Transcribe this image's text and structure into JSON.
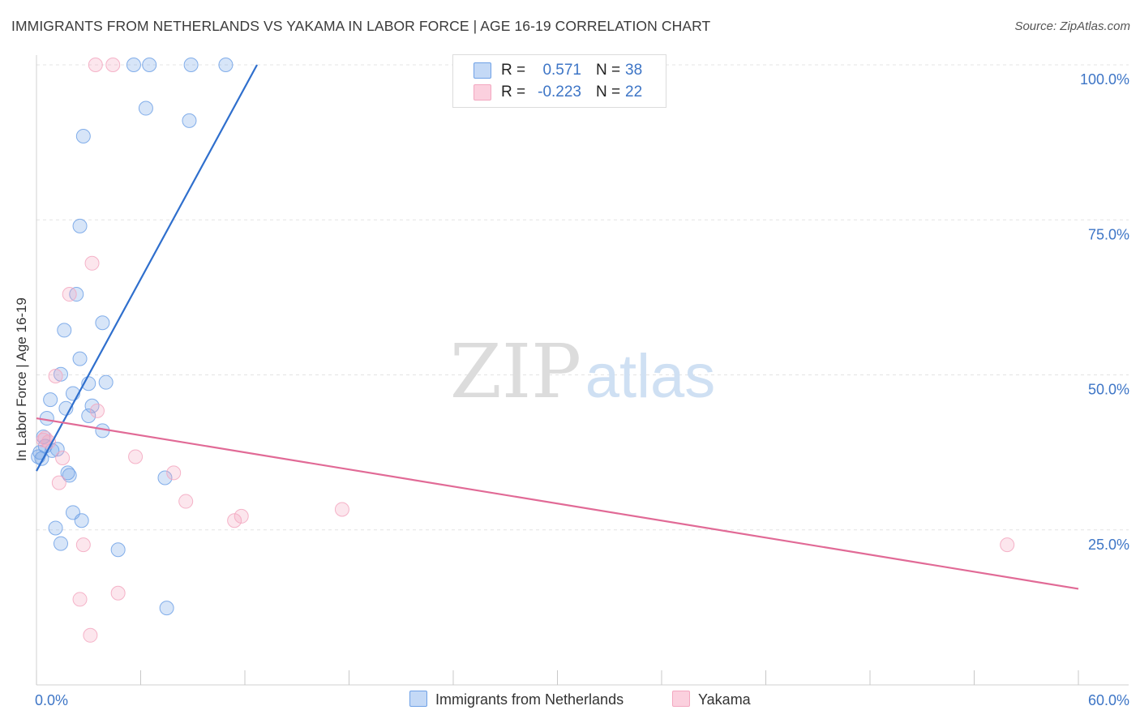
{
  "header": {
    "title": "IMMIGRANTS FROM NETHERLANDS VS YAKAMA IN LABOR FORCE | AGE 16-19 CORRELATION CHART",
    "source": "Source: ZipAtlas.com"
  },
  "watermark": {
    "zip": "ZIP",
    "atlas": "atlas"
  },
  "legend": [
    {
      "r_label": "R =",
      "r_value": "0.571",
      "n_label": "N =",
      "n_value": "38"
    },
    {
      "r_label": "R =",
      "r_value": "-0.223",
      "n_label": "N =",
      "n_value": "22"
    }
  ],
  "chart_data": {
    "type": "scatter",
    "title": "IMMIGRANTS FROM NETHERLANDS VS YAKAMA IN LABOR FORCE | AGE 16-19 CORRELATION CHART",
    "xlabel": "",
    "ylabel": "In Labor Force | Age 16-19",
    "xlim": [
      0,
      60
    ],
    "ylim": [
      0,
      100
    ],
    "x_tick_labels": [
      "0.0%",
      "60.0%"
    ],
    "y_tick_labels": [
      "25.0%",
      "50.0%",
      "75.0%",
      "100.0%"
    ],
    "y_ticks": [
      25,
      50,
      75,
      100
    ],
    "grid": true,
    "legend_position": "top-center",
    "series": [
      {
        "name": "Immigrants from Netherlands",
        "color": "#6fa1e6",
        "line_color": "#2f6fcd",
        "trend": {
          "x": [
            0.0,
            12.7
          ],
          "y": [
            34.5,
            100
          ]
        },
        "points": [
          {
            "x": 5.6,
            "y": 100
          },
          {
            "x": 6.5,
            "y": 100
          },
          {
            "x": 8.9,
            "y": 100
          },
          {
            "x": 10.9,
            "y": 100
          },
          {
            "x": 6.3,
            "y": 93
          },
          {
            "x": 8.8,
            "y": 91
          },
          {
            "x": 2.7,
            "y": 88.5
          },
          {
            "x": 2.5,
            "y": 74
          },
          {
            "x": 2.3,
            "y": 63
          },
          {
            "x": 1.6,
            "y": 57.2
          },
          {
            "x": 3.8,
            "y": 58.4
          },
          {
            "x": 2.5,
            "y": 52.6
          },
          {
            "x": 1.4,
            "y": 50.1
          },
          {
            "x": 3.0,
            "y": 48.6
          },
          {
            "x": 4.0,
            "y": 48.8
          },
          {
            "x": 2.1,
            "y": 47.0
          },
          {
            "x": 0.8,
            "y": 46.0
          },
          {
            "x": 1.7,
            "y": 44.6
          },
          {
            "x": 3.2,
            "y": 45.0
          },
          {
            "x": 3.0,
            "y": 43.4
          },
          {
            "x": 0.6,
            "y": 43.0
          },
          {
            "x": 3.8,
            "y": 41.0
          },
          {
            "x": 0.4,
            "y": 40.0
          },
          {
            "x": 0.5,
            "y": 38.5
          },
          {
            "x": 1.2,
            "y": 38.0
          },
          {
            "x": 0.9,
            "y": 37.8
          },
          {
            "x": 0.2,
            "y": 37.5
          },
          {
            "x": 0.1,
            "y": 36.8
          },
          {
            "x": 0.3,
            "y": 36.5
          },
          {
            "x": 1.8,
            "y": 34.2
          },
          {
            "x": 1.9,
            "y": 33.8
          },
          {
            "x": 7.4,
            "y": 33.4
          },
          {
            "x": 2.1,
            "y": 27.8
          },
          {
            "x": 2.6,
            "y": 26.5
          },
          {
            "x": 1.1,
            "y": 25.3
          },
          {
            "x": 1.4,
            "y": 22.8
          },
          {
            "x": 4.7,
            "y": 21.8
          },
          {
            "x": 7.5,
            "y": 12.4
          }
        ]
      },
      {
        "name": "Yakama",
        "color": "#f3a7c0",
        "line_color": "#e16a96",
        "trend": {
          "x": [
            0.0,
            60.0
          ],
          "y": [
            43.0,
            15.5
          ]
        },
        "points": [
          {
            "x": 3.4,
            "y": 100
          },
          {
            "x": 4.4,
            "y": 100
          },
          {
            "x": 3.2,
            "y": 68.0
          },
          {
            "x": 1.9,
            "y": 63.0
          },
          {
            "x": 1.1,
            "y": 49.8
          },
          {
            "x": 3.5,
            "y": 44.2
          },
          {
            "x": 0.5,
            "y": 39.8
          },
          {
            "x": 0.7,
            "y": 39.2
          },
          {
            "x": 5.7,
            "y": 36.8
          },
          {
            "x": 1.5,
            "y": 36.6
          },
          {
            "x": 7.9,
            "y": 34.2
          },
          {
            "x": 1.3,
            "y": 32.6
          },
          {
            "x": 8.6,
            "y": 29.6
          },
          {
            "x": 17.6,
            "y": 28.3
          },
          {
            "x": 11.8,
            "y": 27.2
          },
          {
            "x": 11.4,
            "y": 26.5
          },
          {
            "x": 2.7,
            "y": 22.6
          },
          {
            "x": 55.9,
            "y": 22.6
          },
          {
            "x": 4.7,
            "y": 14.8
          },
          {
            "x": 2.5,
            "y": 13.8
          },
          {
            "x": 3.1,
            "y": 8.0
          },
          {
            "x": 0.4,
            "y": 39.5
          }
        ]
      }
    ]
  }
}
